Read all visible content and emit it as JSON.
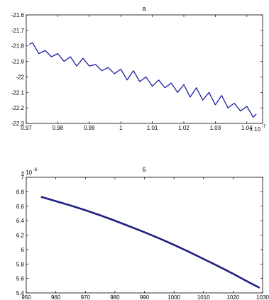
{
  "chart_data": [
    {
      "type": "line",
      "title": "a",
      "xlabel": "",
      "ylabel": "",
      "xlim": [
        0.97,
        1.045
      ],
      "ylim": [
        -22.3,
        -21.6
      ],
      "x_ticks": [
        0.97,
        0.98,
        0.99,
        1.0,
        1.01,
        1.02,
        1.03,
        1.04
      ],
      "x_tick_labels": [
        "0.97",
        "0.98",
        "0.99",
        "1",
        "1.01",
        "1.02",
        "1.03",
        "1.04"
      ],
      "y_ticks": [
        -21.6,
        -21.7,
        -21.8,
        -21.9,
        -22.0,
        -22.1,
        -22.2,
        -22.3
      ],
      "y_tick_labels": [
        "-21.6",
        "-21.7",
        "-21.8",
        "-21.9",
        "-22",
        "-22.1",
        "-22.2",
        "-22.3"
      ],
      "x_exponent": "x 10",
      "x_exponent_power": "-7",
      "grid": false,
      "line_color": "#1f1fa0",
      "x": [
        0.971,
        0.972,
        0.974,
        0.976,
        0.978,
        0.98,
        0.982,
        0.984,
        0.986,
        0.988,
        0.99,
        0.992,
        0.994,
        0.996,
        0.998,
        1.0,
        1.002,
        1.004,
        1.006,
        1.008,
        1.01,
        1.012,
        1.014,
        1.016,
        1.018,
        1.02,
        1.022,
        1.024,
        1.026,
        1.028,
        1.03,
        1.032,
        1.034,
        1.036,
        1.038,
        1.04,
        1.042,
        1.043
      ],
      "y": [
        -21.79,
        -21.78,
        -21.85,
        -21.83,
        -21.87,
        -21.85,
        -21.9,
        -21.87,
        -21.93,
        -21.88,
        -21.93,
        -21.92,
        -21.96,
        -21.94,
        -21.98,
        -21.95,
        -22.02,
        -21.96,
        -22.03,
        -22.0,
        -22.06,
        -22.02,
        -22.07,
        -22.04,
        -22.1,
        -22.05,
        -22.13,
        -22.07,
        -22.15,
        -22.1,
        -22.18,
        -22.12,
        -22.2,
        -22.17,
        -22.22,
        -22.19,
        -22.26,
        -22.24
      ]
    },
    {
      "type": "line",
      "title": "6",
      "xlabel": "",
      "ylabel": "",
      "xlim": [
        950,
        1030
      ],
      "ylim": [
        5.4,
        7.0
      ],
      "x_ticks": [
        950,
        960,
        970,
        980,
        990,
        1000,
        1010,
        1020,
        1030
      ],
      "x_tick_labels": [
        "950",
        "960",
        "970",
        "980",
        "990",
        "1000",
        "1010",
        "1020",
        "1030"
      ],
      "y_ticks": [
        7.0,
        6.8,
        6.6,
        6.4,
        6.2,
        6.0,
        5.8,
        5.6,
        5.4
      ],
      "y_tick_labels": [
        "7",
        "6.8",
        "6.6",
        "6.4",
        "6.2",
        "6",
        "5.8",
        "5.6",
        "5.4"
      ],
      "y_exponent": "x 10",
      "y_exponent_power": "-6",
      "grid": false,
      "line_color": "#1f1f80",
      "x": [
        955,
        960,
        965,
        970,
        975,
        980,
        985,
        990,
        995,
        1000,
        1005,
        1010,
        1015,
        1020,
        1025,
        1029
      ],
      "y": [
        6.73,
        6.67,
        6.61,
        6.545,
        6.475,
        6.4,
        6.32,
        6.24,
        6.155,
        6.065,
        5.97,
        5.87,
        5.77,
        5.665,
        5.555,
        5.47
      ]
    }
  ]
}
